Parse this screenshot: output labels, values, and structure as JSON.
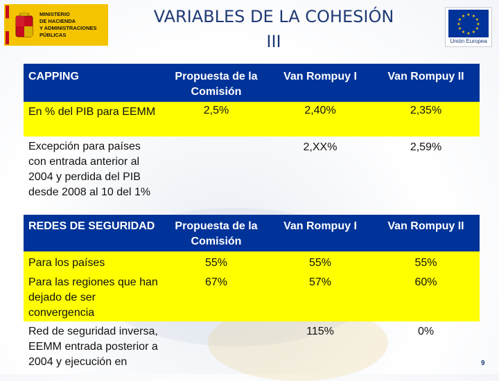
{
  "header": {
    "title_line1": "VARIABLES DE LA COHESIÓN",
    "title_line2": "III",
    "ministry_logo": {
      "line1": "MINISTERIO",
      "line2": "DE HACIENDA",
      "line3": "Y ADMINISTRACIONES",
      "line4": "PÚBLICAS"
    },
    "eu_logo_text": "Unión Europea"
  },
  "colors": {
    "header_row": "#003399",
    "highlight_row": "#ffff00",
    "title": "#1f3a73"
  },
  "table": {
    "rows": [
      {
        "style": "blue",
        "cells": [
          "CAPPING",
          "Propuesta de la Comisión",
          "Van Rompuy I",
          "Van Rompuy II"
        ]
      },
      {
        "style": "yellow",
        "cells": [
          "En % del PIB para EEMM",
          "2,5%",
          "2,40%",
          "2,35%"
        ]
      },
      {
        "style": "plain",
        "cells": [
          "Excepción para países con entrada anterior al 2004 y perdida del PIB desde 2008 al 10 del 1%",
          "",
          "2,XX%",
          "2,59%"
        ]
      },
      {
        "style": "blue",
        "cells": [
          "REDES DE SEGURIDAD",
          "Propuesta de la Comisión",
          "Van Rompuy I",
          "Van Rompuy II"
        ]
      },
      {
        "style": "yellow",
        "cells": [
          "Para los países",
          "55%",
          "55%",
          "55%"
        ]
      },
      {
        "style": "yellow",
        "cells": [
          "Para las regiones que han dejado de ser convergencia",
          "67%",
          "57%",
          "60%"
        ]
      },
      {
        "style": "plain",
        "cells": [
          "Red de seguridad inversa, EEMM entrada posterior a 2004 y ejecución en",
          "",
          "115%",
          "0%"
        ]
      }
    ]
  },
  "page_number": "9"
}
